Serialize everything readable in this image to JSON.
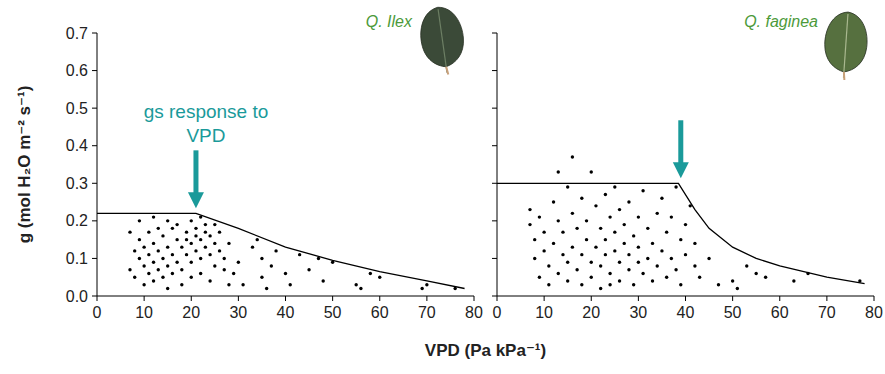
{
  "chart_data": [
    {
      "type": "scatter",
      "title": "Q. Ilex",
      "xlabel": "VPD (Pa kPa⁻¹)",
      "ylabel": "g (mol H₂O m⁻² s⁻¹)",
      "xlim": [
        0,
        80
      ],
      "xticks": [
        0,
        10,
        20,
        30,
        40,
        50,
        60,
        70,
        80
      ],
      "ylim": [
        0,
        0.7
      ],
      "yticks": [
        {
          "value": 0,
          "label": "0.0"
        },
        0.1,
        0.2,
        0.3,
        0.4,
        0.5,
        0.6,
        0.7
      ],
      "grid": false,
      "series": [
        {
          "type": "scatter",
          "color": "#000000",
          "marker": "circle",
          "x": [
            7,
            7,
            8,
            8,
            9,
            9,
            9,
            10,
            10,
            10,
            11,
            11,
            11,
            12,
            12,
            12,
            12,
            13,
            13,
            13,
            14,
            14,
            14,
            15,
            15,
            15,
            15,
            16,
            16,
            16,
            17,
            17,
            17,
            18,
            18,
            18,
            19,
            19,
            19,
            20,
            20,
            20,
            20,
            21,
            21,
            21,
            22,
            22,
            22,
            22,
            23,
            23,
            23,
            24,
            24,
            24,
            25,
            25,
            25,
            26,
            26,
            27,
            27,
            28,
            28,
            29,
            30,
            31,
            33,
            34,
            35,
            35,
            36,
            37,
            38,
            40,
            41,
            43,
            45,
            47,
            48,
            50,
            55,
            56,
            58,
            60,
            69,
            70,
            76
          ],
          "values": [
            0.07,
            0.17,
            0.12,
            0.05,
            0.1,
            0.15,
            0.2,
            0.08,
            0.13,
            0.03,
            0.17,
            0.11,
            0.06,
            0.21,
            0.14,
            0.09,
            0.04,
            0.18,
            0.12,
            0.07,
            0.16,
            0.1,
            0.05,
            0.2,
            0.13,
            0.08,
            0.02,
            0.18,
            0.11,
            0.06,
            0.15,
            0.09,
            0.19,
            0.13,
            0.07,
            0.03,
            0.17,
            0.11,
            0.15,
            0.2,
            0.14,
            0.09,
            0.05,
            0.18,
            0.12,
            0.16,
            0.21,
            0.15,
            0.1,
            0.06,
            0.19,
            0.13,
            0.17,
            0.16,
            0.11,
            0.04,
            0.19,
            0.14,
            0.08,
            0.12,
            0.17,
            0.07,
            0.1,
            0.03,
            0.14,
            0.06,
            0.09,
            0.03,
            0.13,
            0.15,
            0.05,
            0.1,
            0.02,
            0.08,
            0.12,
            0.06,
            0.03,
            0.11,
            0.07,
            0.1,
            0.04,
            0.09,
            0.03,
            0.02,
            0.06,
            0.05,
            0.02,
            0.03,
            0.02
          ]
        },
        {
          "type": "line",
          "color": "#000000",
          "line_style": "solid",
          "x": [
            0,
            21,
            30,
            40,
            50,
            60,
            70,
            78
          ],
          "values": [
            0.22,
            0.22,
            0.18,
            0.13,
            0.095,
            0.065,
            0.04,
            0.02
          ]
        }
      ],
      "annotations": [
        {
          "text": "gs response to VPD",
          "x": 21,
          "y": 0.22,
          "color": "#1a9a9a"
        }
      ]
    },
    {
      "type": "scatter",
      "title": "Q. faginea",
      "xlim": [
        0,
        80
      ],
      "xticks": [
        0,
        10,
        20,
        30,
        40,
        50,
        60,
        70,
        80
      ],
      "ylim": [
        0,
        0.7
      ],
      "yticks": [
        {
          "value": 0,
          "label": "0.0"
        },
        0.1,
        0.2,
        0.3,
        0.4,
        0.5,
        0.6,
        0.7
      ],
      "grid": false,
      "tick_labels": "x",
      "series": [
        {
          "type": "scatter",
          "color": "#000000",
          "marker": "circle",
          "x": [
            7,
            7,
            8,
            8,
            9,
            9,
            10,
            10,
            11,
            11,
            12,
            12,
            13,
            13,
            13,
            14,
            14,
            15,
            15,
            15,
            16,
            16,
            16,
            17,
            17,
            18,
            18,
            18,
            19,
            19,
            20,
            20,
            20,
            21,
            21,
            22,
            22,
            22,
            23,
            23,
            23,
            24,
            24,
            24,
            25,
            25,
            25,
            26,
            26,
            26,
            27,
            27,
            28,
            28,
            28,
            29,
            29,
            30,
            30,
            30,
            31,
            31,
            32,
            32,
            33,
            33,
            34,
            34,
            35,
            35,
            36,
            36,
            37,
            37,
            38,
            38,
            39,
            39,
            40,
            40,
            41,
            42,
            42,
            43,
            45,
            47,
            50,
            51,
            53,
            55,
            57,
            63,
            66,
            77
          ],
          "values": [
            0.19,
            0.23,
            0.1,
            0.15,
            0.05,
            0.21,
            0.12,
            0.17,
            0.03,
            0.08,
            0.25,
            0.14,
            0.33,
            0.2,
            0.06,
            0.11,
            0.17,
            0.29,
            0.09,
            0.04,
            0.37,
            0.22,
            0.13,
            0.18,
            0.07,
            0.26,
            0.11,
            0.03,
            0.15,
            0.2,
            0.33,
            0.09,
            0.05,
            0.24,
            0.13,
            0.18,
            0.08,
            0.02,
            0.27,
            0.15,
            0.11,
            0.21,
            0.06,
            0.03,
            0.29,
            0.17,
            0.12,
            0.09,
            0.23,
            0.04,
            0.14,
            0.19,
            0.07,
            0.11,
            0.25,
            0.16,
            0.03,
            0.21,
            0.09,
            0.13,
            0.06,
            0.28,
            0.18,
            0.1,
            0.04,
            0.14,
            0.22,
            0.08,
            0.12,
            0.26,
            0.05,
            0.17,
            0.1,
            0.21,
            0.29,
            0.07,
            0.15,
            0.03,
            0.19,
            0.11,
            0.24,
            0.08,
            0.14,
            0.05,
            0.1,
            0.03,
            0.04,
            0.02,
            0.08,
            0.06,
            0.05,
            0.04,
            0.06,
            0.04
          ]
        },
        {
          "type": "line",
          "color": "#000000",
          "line_style": "solid",
          "x": [
            0,
            38.5,
            42,
            45,
            50,
            55,
            60,
            70,
            78
          ],
          "values": [
            0.3,
            0.3,
            0.23,
            0.18,
            0.13,
            0.1,
            0.08,
            0.05,
            0.033
          ]
        }
      ],
      "annotations": [
        {
          "x": 39,
          "y": 0.3,
          "color": "#1a9a9a"
        }
      ]
    }
  ]
}
